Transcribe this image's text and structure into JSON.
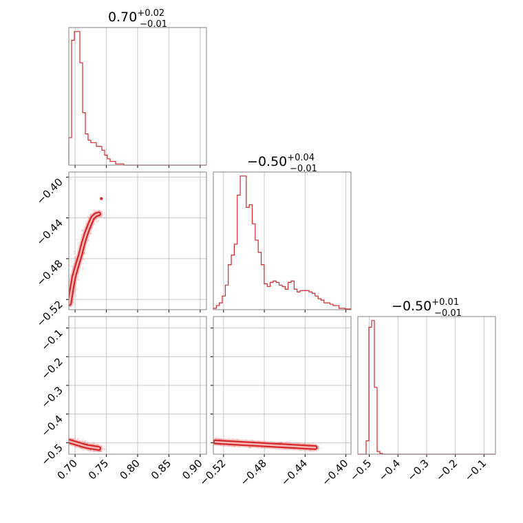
{
  "chart_data": {
    "type": "corner",
    "colors": {
      "main": "#d62728",
      "grid": "#c8c8c8",
      "frame": "#808080"
    },
    "parameters": [
      {
        "range": [
          0.69,
          0.91
        ],
        "ticks": [
          "0.70",
          "0.75",
          "0.80",
          "0.85",
          "0.90"
        ],
        "tick_values": [
          0.7,
          0.75,
          0.8,
          0.85,
          0.9
        ],
        "title": {
          "main": "0.70",
          "sup": "+0.02",
          "sub": "−0.01"
        }
      },
      {
        "range": [
          -0.53,
          -0.395
        ],
        "ticks": [
          "−0.52",
          "−0.48",
          "−0.44",
          "−0.40"
        ],
        "tick_values": [
          -0.52,
          -0.48,
          -0.44,
          -0.4
        ],
        "title": {
          "main": "−0.50",
          "sup": "+0.04",
          "sub": "−0.01"
        }
      },
      {
        "range": [
          -0.54,
          -0.06
        ],
        "ticks": [
          "−0.5",
          "−0.4",
          "−0.3",
          "−0.2",
          "−0.1"
        ],
        "tick_values": [
          -0.5,
          -0.4,
          -0.3,
          -0.2,
          -0.1
        ],
        "title": {
          "main": "−0.50",
          "sup": "+0.01",
          "sub": "−0.01"
        }
      }
    ],
    "histograms": [
      {
        "param": 0,
        "heights": [
          0.22,
          1.0,
          1.07,
          1.07,
          0.82,
          0.42,
          0.25,
          0.2,
          0.18,
          0.18,
          0.15,
          0.15,
          0.12,
          0.08,
          0.05,
          0.03,
          0.03,
          0.01,
          0.01,
          0.01,
          0,
          0,
          0,
          0,
          0,
          0,
          0,
          0,
          0,
          0,
          0,
          0,
          0,
          0,
          0,
          0,
          0,
          0,
          0,
          0,
          0,
          0,
          0,
          0,
          0,
          0,
          0,
          0,
          0,
          0
        ]
      },
      {
        "param": 1,
        "heights": [
          0.01,
          0.03,
          0.05,
          0.1,
          0.18,
          0.33,
          0.4,
          0.48,
          0.84,
          0.98,
          0.98,
          0.75,
          0.77,
          0.63,
          0.51,
          0.42,
          0.33,
          0.19,
          0.17,
          0.2,
          0.21,
          0.2,
          0.18,
          0.17,
          0.15,
          0.2,
          0.21,
          0.15,
          0.13,
          0.14,
          0.14,
          0.14,
          0.13,
          0.12,
          0.1,
          0.08,
          0.07,
          0.05,
          0.05,
          0.04,
          0.03,
          0.03,
          0.01,
          0.01,
          0.005,
          0.005
        ]
      },
      {
        "param": 2,
        "heights": [
          0,
          0,
          0,
          0.1,
          0.95,
          1.0,
          0.5,
          0.02,
          0.005,
          0,
          0,
          0,
          0,
          0,
          0,
          0,
          0,
          0,
          0,
          0,
          0,
          0,
          0,
          0,
          0,
          0,
          0,
          0,
          0,
          0,
          0,
          0,
          0,
          0,
          0,
          0,
          0,
          0,
          0,
          0,
          0,
          0,
          0,
          0,
          0,
          0,
          0,
          0,
          0,
          0
        ]
      }
    ],
    "scatter_pairs": [
      {
        "x_param": 0,
        "y_param": 1,
        "contour_ridge": [
          [
            0.691,
            -0.524
          ],
          [
            0.694,
            -0.512
          ],
          [
            0.698,
            -0.498
          ],
          [
            0.703,
            -0.487
          ],
          [
            0.708,
            -0.477
          ],
          [
            0.713,
            -0.465
          ],
          [
            0.718,
            -0.455
          ],
          [
            0.723,
            -0.447
          ],
          [
            0.728,
            -0.44
          ],
          [
            0.733,
            -0.437
          ],
          [
            0.738,
            -0.436
          ]
        ],
        "peak": [
          0.742,
          -0.421
        ]
      },
      {
        "x_param": 1,
        "y_param": 2,
        "contour_ridge": [
          [
            -0.528,
            -0.497
          ],
          [
            -0.52,
            -0.499
          ],
          [
            -0.51,
            -0.501
          ],
          [
            -0.5,
            -0.503
          ],
          [
            -0.49,
            -0.505
          ],
          [
            -0.48,
            -0.507
          ],
          [
            -0.47,
            -0.509
          ],
          [
            -0.46,
            -0.511
          ],
          [
            -0.45,
            -0.513
          ],
          [
            -0.44,
            -0.515
          ],
          [
            -0.43,
            -0.517
          ]
        ]
      },
      {
        "x_param": 0,
        "y_param": 2,
        "contour_ridge": [
          [
            0.691,
            -0.495
          ],
          [
            0.697,
            -0.499
          ],
          [
            0.703,
            -0.503
          ],
          [
            0.709,
            -0.507
          ],
          [
            0.715,
            -0.511
          ],
          [
            0.721,
            -0.514
          ],
          [
            0.727,
            -0.516
          ],
          [
            0.733,
            -0.518
          ],
          [
            0.738,
            -0.52
          ]
        ]
      }
    ]
  }
}
